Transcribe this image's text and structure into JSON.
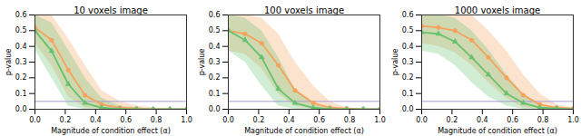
{
  "chart_data": [
    {
      "type": "line",
      "title": "10 voxels image",
      "xlabel": "Magnitude of condition effect (α)",
      "ylabel": "p-value",
      "x": [
        0,
        0.11,
        0.22,
        0.33,
        0.44,
        0.56,
        0.67,
        0.78,
        0.89,
        1.0
      ],
      "xlim": [
        0,
        1
      ],
      "ylim": [
        0,
        0.6
      ],
      "xticks": [
        {
          "value": 0,
          "label": "0.0"
        },
        {
          "value": 0.2,
          "label": "0.2"
        },
        {
          "value": 0.4,
          "label": "0.4"
        },
        {
          "value": 0.6,
          "label": "0.6"
        },
        {
          "value": 0.8,
          "label": "0.8"
        },
        {
          "value": 1.0,
          "label": "1.0"
        }
      ],
      "yticks": [
        {
          "value": 0,
          "label": "0.0"
        },
        0.1,
        0.2,
        0.3,
        0.4,
        0.5,
        0.6
      ],
      "grid": false,
      "threshold": 0.05,
      "threshold_color": "#a99bd4",
      "series": [
        {
          "color": "#f5a35c",
          "marker": "circle",
          "values": [
            0.52,
            0.44,
            0.25,
            0.09,
            0.03,
            0.01,
            0.005,
            0,
            0,
            0
          ],
          "lower": [
            0.42,
            0.28,
            0.08,
            0.01,
            0,
            0,
            0,
            0,
            0,
            0
          ],
          "upper": [
            0.6,
            0.6,
            0.45,
            0.28,
            0.12,
            0.05,
            0.02,
            0.01,
            0,
            0
          ]
        },
        {
          "color": "#66c26c",
          "marker": "triangle",
          "values": [
            0.5,
            0.37,
            0.16,
            0.04,
            0.01,
            0,
            0,
            0,
            0,
            0
          ],
          "lower": [
            0.38,
            0.2,
            0.02,
            0,
            0,
            0,
            0,
            0,
            0,
            0
          ],
          "upper": [
            0.6,
            0.55,
            0.38,
            0.2,
            0.07,
            0.02,
            0.01,
            0,
            0,
            0
          ]
        }
      ]
    },
    {
      "type": "line",
      "title": "100 voxels image",
      "xlabel": "Magnitude of condition effect (α)",
      "ylabel": "p-value",
      "x": [
        0,
        0.11,
        0.22,
        0.33,
        0.44,
        0.56,
        0.67,
        0.78,
        0.89,
        1.0
      ],
      "xlim": [
        0,
        1
      ],
      "ylim": [
        0,
        0.6
      ],
      "xticks": [
        {
          "value": 0,
          "label": "0.0"
        },
        {
          "value": 0.2,
          "label": "0.2"
        },
        {
          "value": 0.4,
          "label": "0.4"
        },
        {
          "value": 0.6,
          "label": "0.6"
        },
        {
          "value": 0.8,
          "label": "0.8"
        },
        {
          "value": 1.0,
          "label": "1.0"
        }
      ],
      "yticks": [
        {
          "value": 0,
          "label": "0.0"
        },
        0.1,
        0.2,
        0.3,
        0.4,
        0.5,
        0.6
      ],
      "grid": false,
      "threshold": 0.05,
      "threshold_color": "#a99bd4",
      "series": [
        {
          "color": "#f5a35c",
          "marker": "circle",
          "values": [
            0.5,
            0.48,
            0.42,
            0.28,
            0.12,
            0.04,
            0.01,
            0.005,
            0,
            0
          ],
          "lower": [
            0.37,
            0.35,
            0.26,
            0.1,
            0.02,
            0,
            0,
            0,
            0,
            0
          ],
          "upper": [
            0.6,
            0.6,
            0.58,
            0.48,
            0.3,
            0.15,
            0.05,
            0.01,
            0,
            0
          ]
        },
        {
          "color": "#66c26c",
          "marker": "triangle",
          "values": [
            0.5,
            0.44,
            0.33,
            0.13,
            0.04,
            0.01,
            0,
            0,
            0,
            0
          ],
          "lower": [
            0.37,
            0.3,
            0.15,
            0.02,
            0,
            0,
            0,
            0,
            0,
            0
          ],
          "upper": [
            0.6,
            0.58,
            0.5,
            0.33,
            0.13,
            0.04,
            0.01,
            0,
            0,
            0
          ]
        }
      ]
    },
    {
      "type": "line",
      "title": "1000 voxels image",
      "xlabel": "Magnitude of condition effect (α)",
      "ylabel": "p-value",
      "x": [
        0,
        0.11,
        0.22,
        0.33,
        0.44,
        0.56,
        0.67,
        0.78,
        0.89,
        1.0
      ],
      "xlim": [
        0,
        1
      ],
      "ylim": [
        0,
        0.6
      ],
      "xticks": [
        {
          "value": 0,
          "label": "0.0"
        },
        {
          "value": 0.2,
          "label": "0.2"
        },
        {
          "value": 0.4,
          "label": "0.4"
        },
        {
          "value": 0.6,
          "label": "0.6"
        },
        {
          "value": 0.8,
          "label": "0.8"
        },
        {
          "value": 1.0,
          "label": "1.0"
        }
      ],
      "yticks": [
        {
          "value": 0,
          "label": "0.0"
        },
        0.1,
        0.2,
        0.3,
        0.4,
        0.5,
        0.6
      ],
      "grid": false,
      "threshold": 0.05,
      "threshold_color": "#a99bd4",
      "series": [
        {
          "color": "#f5a35c",
          "marker": "circle",
          "values": [
            0.53,
            0.52,
            0.5,
            0.44,
            0.33,
            0.2,
            0.09,
            0.03,
            0.01,
            0.005
          ],
          "lower": [
            0.42,
            0.4,
            0.36,
            0.28,
            0.17,
            0.07,
            0.01,
            0,
            0,
            0
          ],
          "upper": [
            0.6,
            0.6,
            0.6,
            0.6,
            0.5,
            0.37,
            0.22,
            0.1,
            0.03,
            0.01
          ]
        },
        {
          "color": "#66c26c",
          "marker": "triangle",
          "values": [
            0.49,
            0.48,
            0.43,
            0.33,
            0.22,
            0.1,
            0.04,
            0.01,
            0.005,
            0
          ],
          "lower": [
            0.37,
            0.35,
            0.28,
            0.17,
            0.08,
            0.02,
            0,
            0,
            0,
            0
          ],
          "upper": [
            0.6,
            0.6,
            0.58,
            0.5,
            0.38,
            0.22,
            0.1,
            0.03,
            0.01,
            0
          ]
        }
      ]
    }
  ]
}
